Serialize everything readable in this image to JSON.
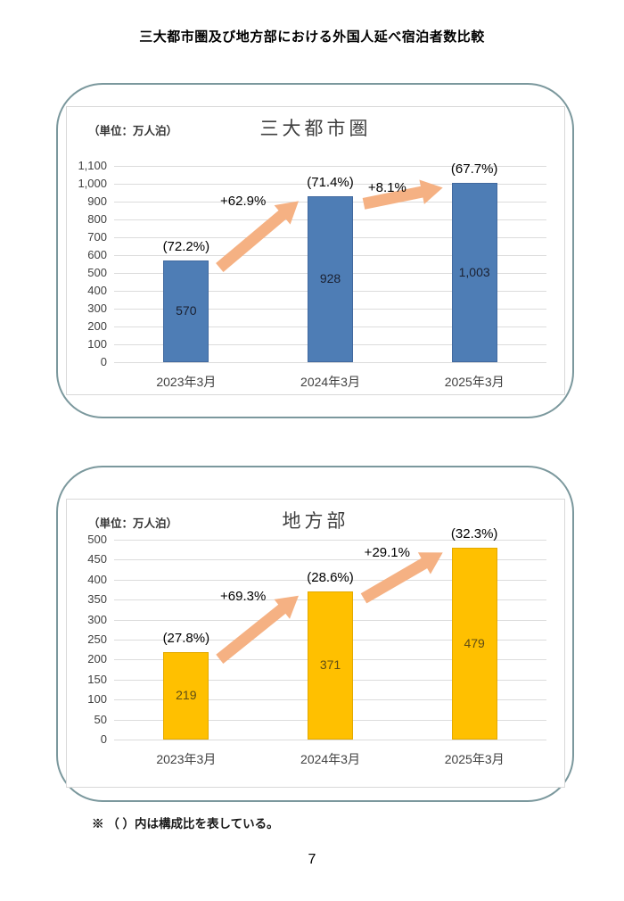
{
  "page": {
    "title": "三大都市圏及び地方部における外国人延べ宿泊者数比較",
    "footnote": "※ （ ）内は構成比を表している。",
    "page_number": "7"
  },
  "colors": {
    "arrow": "#f5b183",
    "panel_border": "#7b989d",
    "gridline": "#dcdcdc",
    "metro_bar": "#4e7db5",
    "regional_bar": "#ffc000"
  },
  "chart_data": [
    {
      "type": "bar",
      "title": "三大都市圏",
      "unit_label": "（単位：万人泊）",
      "categories": [
        "2023年3月",
        "2024年3月",
        "2025年3月"
      ],
      "values": [
        570,
        928,
        1003
      ],
      "value_labels": [
        "570",
        "928",
        "1,003"
      ],
      "share_labels": [
        "(72.2%)",
        "(71.4%)",
        "(67.7%)"
      ],
      "growth_annotations": [
        "+62.9%",
        "+8.1%"
      ],
      "ylim": [
        0,
        1100
      ],
      "ytick_step": 100,
      "ytick_labels": [
        "0",
        "100",
        "200",
        "300",
        "400",
        "500",
        "600",
        "700",
        "800",
        "900",
        "1,000",
        "1,100"
      ],
      "grid": true,
      "legend": "none",
      "bar_color": "#4e7db5",
      "bar_border_color": "#41699f",
      "value_label_color": "#1a2030"
    },
    {
      "type": "bar",
      "title": "地方部",
      "unit_label": "（単位：万人泊）",
      "categories": [
        "2023年3月",
        "2024年3月",
        "2025年3月"
      ],
      "values": [
        219,
        371,
        479
      ],
      "value_labels": [
        "219",
        "371",
        "479"
      ],
      "share_labels": [
        "(27.8%)",
        "(28.6%)",
        "(32.3%)"
      ],
      "growth_annotations": [
        "+69.3%",
        "+29.1%"
      ],
      "ylim": [
        0,
        500
      ],
      "ytick_step": 50,
      "ytick_labels": [
        "0",
        "50",
        "100",
        "150",
        "200",
        "250",
        "300",
        "350",
        "400",
        "450",
        "500"
      ],
      "grid": true,
      "legend": "none",
      "bar_color": "#ffc000",
      "bar_border_color": "#e3a900",
      "value_label_color": "#5f4d15"
    }
  ]
}
